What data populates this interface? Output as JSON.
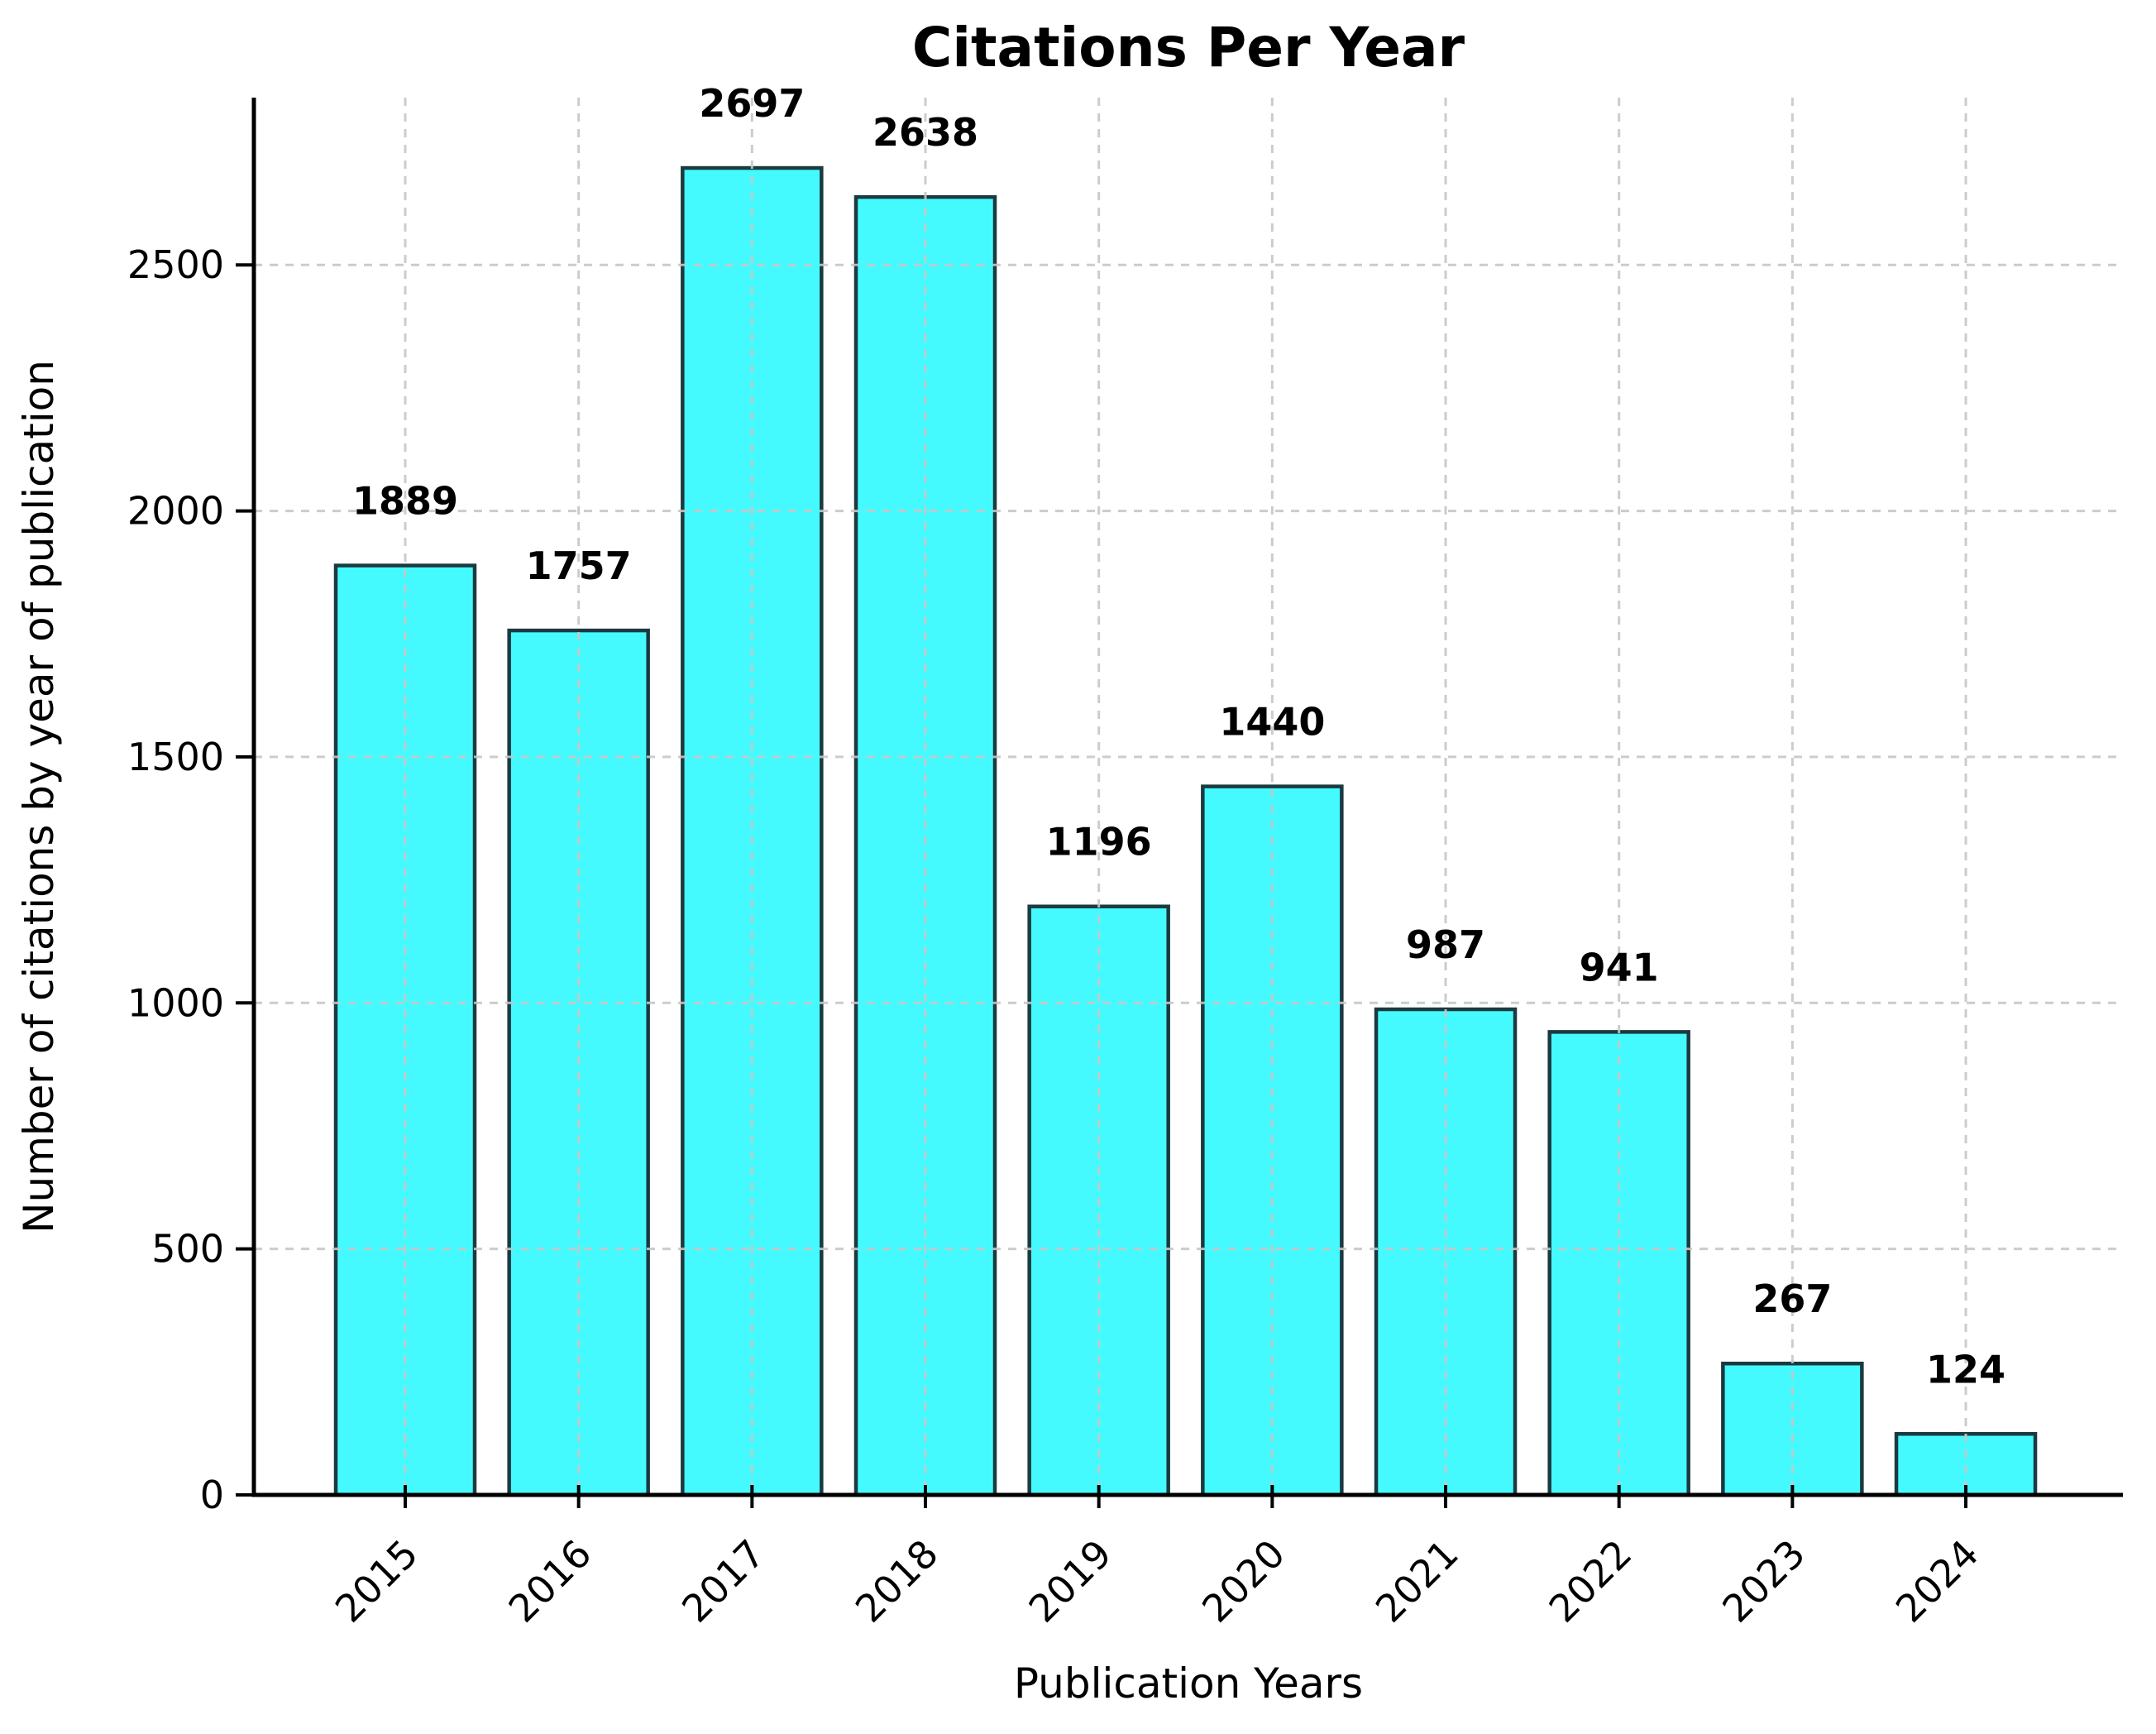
{
  "figure": {
    "background": "#ffffff"
  },
  "chart_data": {
    "type": "bar",
    "title": "Citations Per Year",
    "xlabel": "Publication Years",
    "ylabel": "Number of citations by year of publication",
    "categories": [
      "2015",
      "2016",
      "2017",
      "2018",
      "2019",
      "2020",
      "2021",
      "2022",
      "2023",
      "2024"
    ],
    "values": [
      1889,
      1757,
      2697,
      2638,
      1196,
      1440,
      987,
      941,
      267,
      124
    ],
    "bar_value_labels": [
      "1889",
      "1757",
      "2697",
      "2638",
      "1196",
      "1440",
      "987",
      "941",
      "267",
      "124"
    ],
    "yticks": [
      0,
      500,
      1000,
      1500,
      2000,
      2500
    ],
    "ytick_labels": [
      "0",
      "500",
      "1000",
      "1500",
      "2000",
      "2500"
    ],
    "ylim": [
      0,
      2840
    ],
    "grid": "on",
    "grid_style": "dashed",
    "legend_position": "none",
    "xtick_rotation_deg": 45,
    "colors": {
      "bar_fill": "#45FAFF",
      "bar_edge": "#1B3A3F",
      "grid": "#C6C6C6",
      "axis": "#000000",
      "text": "#000000"
    }
  }
}
